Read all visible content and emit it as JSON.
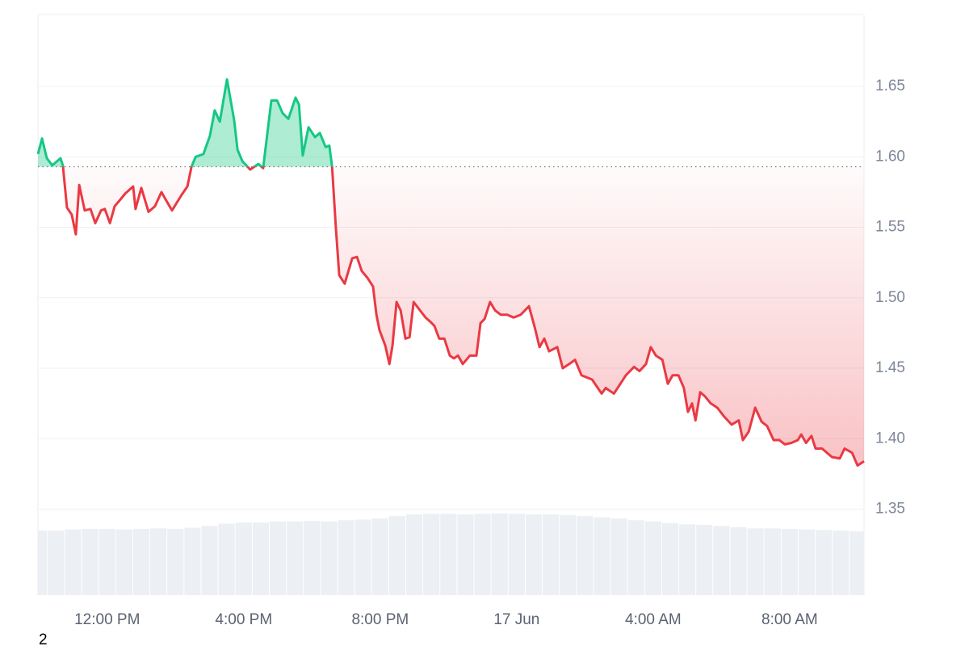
{
  "chart_data": {
    "type": "line",
    "x": [
      9.97,
      10.09,
      10.23,
      10.39,
      10.63,
      10.7,
      10.82,
      10.96,
      11.08,
      11.18,
      11.34,
      11.51,
      11.65,
      11.82,
      11.93,
      12.08,
      12.22,
      12.36,
      12.53,
      12.76,
      12.83,
      13.0,
      13.21,
      13.4,
      13.59,
      13.73,
      13.9,
      14.18,
      14.35,
      14.47,
      14.59,
      14.82,
      15.01,
      15.15,
      15.3,
      15.51,
      15.72,
      15.82,
      15.96,
      16.19,
      16.43,
      16.57,
      16.81,
      16.98,
      17.14,
      17.31,
      17.52,
      17.62,
      17.73,
      17.9,
      18.09,
      18.23,
      18.4,
      18.51,
      18.59,
      18.7,
      18.8,
      18.96,
      19.18,
      19.32,
      19.46,
      19.63,
      19.79,
      19.89,
      19.98,
      20.15,
      20.27,
      20.36,
      20.48,
      20.6,
      20.74,
      20.86,
      20.98,
      21.17,
      21.33,
      21.47,
      21.59,
      21.73,
      21.88,
      22.04,
      22.16,
      22.28,
      22.42,
      22.63,
      22.82,
      22.94,
      23.06,
      23.22,
      23.37,
      23.53,
      23.72,
      23.91,
      24.12,
      24.36,
      24.53,
      24.67,
      24.81,
      24.95,
      25.19,
      25.35,
      25.54,
      25.71,
      25.9,
      26.21,
      26.49,
      26.61,
      26.85,
      27.04,
      27.2,
      27.44,
      27.6,
      27.79,
      27.93,
      28.08,
      28.27,
      28.43,
      28.57,
      28.74,
      28.9,
      29.02,
      29.14,
      29.24,
      29.38,
      29.52,
      29.69,
      29.88,
      30.07,
      30.3,
      30.51,
      30.63,
      30.8,
      30.99,
      31.18,
      31.34,
      31.53,
      31.7,
      31.86,
      32.05,
      32.24,
      32.34,
      32.48,
      32.64,
      32.76,
      32.95,
      33.24,
      33.47,
      33.61,
      33.83,
      33.99,
      34.18
    ],
    "values": [
      1.602,
      1.613,
      1.599,
      1.594,
      1.599,
      1.594,
      1.564,
      1.559,
      1.545,
      1.58,
      1.562,
      1.563,
      1.553,
      1.562,
      1.563,
      1.553,
      1.565,
      1.569,
      1.574,
      1.579,
      1.563,
      1.578,
      1.561,
      1.565,
      1.575,
      1.569,
      1.562,
      1.573,
      1.579,
      1.593,
      1.6,
      1.602,
      1.615,
      1.633,
      1.625,
      1.655,
      1.626,
      1.605,
      1.597,
      1.591,
      1.595,
      1.592,
      1.64,
      1.64,
      1.631,
      1.627,
      1.642,
      1.637,
      1.601,
      1.621,
      1.614,
      1.617,
      1.607,
      1.608,
      1.593,
      1.55,
      1.516,
      1.51,
      1.528,
      1.529,
      1.519,
      1.514,
      1.508,
      1.488,
      1.477,
      1.466,
      1.453,
      1.466,
      1.497,
      1.491,
      1.471,
      1.472,
      1.497,
      1.491,
      1.486,
      1.483,
      1.48,
      1.471,
      1.471,
      1.459,
      1.457,
      1.459,
      1.453,
      1.459,
      1.459,
      1.482,
      1.485,
      1.497,
      1.491,
      1.488,
      1.488,
      1.486,
      1.488,
      1.494,
      1.479,
      1.465,
      1.471,
      1.462,
      1.465,
      1.45,
      1.453,
      1.456,
      1.445,
      1.442,
      1.432,
      1.436,
      1.432,
      1.439,
      1.445,
      1.451,
      1.448,
      1.453,
      1.465,
      1.459,
      1.456,
      1.439,
      1.445,
      1.445,
      1.436,
      1.419,
      1.425,
      1.413,
      1.433,
      1.43,
      1.425,
      1.422,
      1.416,
      1.41,
      1.413,
      1.399,
      1.405,
      1.422,
      1.412,
      1.409,
      1.399,
      1.399,
      1.396,
      1.397,
      1.399,
      1.403,
      1.397,
      1.402,
      1.393,
      1.393,
      1.387,
      1.386,
      1.393,
      1.39,
      1.381,
      1.384
    ],
    "baseline": 1.593,
    "color_up": "#16c784",
    "color_down": "#ea3943",
    "xlim": [
      9.97,
      34.18
    ],
    "xticks": [
      {
        "value": 12,
        "label": "12:00 PM"
      },
      {
        "value": 16,
        "label": "4:00 PM"
      },
      {
        "value": 20,
        "label": "8:00 PM"
      },
      {
        "value": 24,
        "label": "17 Jun"
      },
      {
        "value": 28,
        "label": "4:00 AM"
      },
      {
        "value": 32,
        "label": "8:00 AM"
      }
    ],
    "ylim": [
      1.289,
      1.701
    ],
    "yticks": [
      1.35,
      {
        "value": 1.4,
        "label": "1.40"
      },
      1.45,
      {
        "value": 1.5,
        "label": "1.50"
      },
      1.55,
      {
        "value": 1.6,
        "label": "1.60"
      },
      1.65
    ],
    "grid": true,
    "volume": {
      "color": "#eceff3",
      "x": [
        10,
        10.5,
        11,
        11.5,
        12,
        12.5,
        13,
        13.5,
        14,
        14.5,
        15,
        15.5,
        16,
        16.5,
        17,
        17.5,
        18,
        18.5,
        19,
        19.5,
        20,
        20.5,
        21,
        21.5,
        22,
        22.5,
        23,
        23.5,
        24,
        24.5,
        25,
        25.5,
        26,
        26.5,
        27,
        27.5,
        28,
        28.5,
        29,
        29.5,
        30,
        30.5,
        31,
        31.5,
        32,
        32.5,
        33,
        33.5,
        34
      ],
      "values": [
        11.1,
        11.1,
        11.3,
        11.4,
        11.4,
        11.3,
        11.4,
        11.5,
        11.4,
        11.6,
        11.9,
        12.3,
        12.5,
        12.5,
        12.7,
        12.7,
        12.8,
        12.7,
        12.9,
        13.0,
        13.2,
        13.6,
        13.9,
        14.0,
        14.0,
        13.9,
        14.0,
        14.1,
        14.0,
        13.9,
        13.9,
        13.8,
        13.6,
        13.4,
        13.2,
        12.9,
        12.7,
        12.4,
        12.2,
        12.1,
        11.9,
        11.7,
        11.5,
        11.5,
        11.4,
        11.3,
        11.2,
        11.1,
        11.0
      ]
    },
    "y2lim": [
      0,
      100
    ],
    "footnote": "2"
  }
}
